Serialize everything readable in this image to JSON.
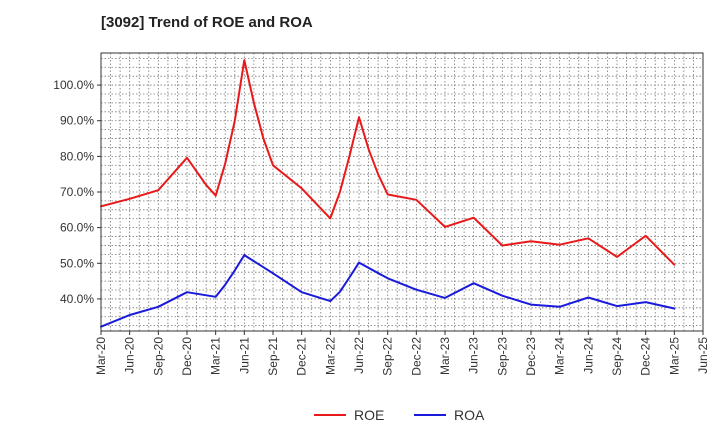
{
  "chart_data": {
    "type": "line",
    "title": "[3092]  Trend of ROE and ROA",
    "xlabel": "",
    "ylabel": "",
    "y_tick_labels": [
      "40.0%",
      "50.0%",
      "60.0%",
      "70.0%",
      "80.0%",
      "90.0%",
      "100.0%"
    ],
    "y_tick_values": [
      40,
      50,
      60,
      70,
      80,
      90,
      100
    ],
    "ylim": [
      31,
      109
    ],
    "x_tick_labels": [
      "Mar-20",
      "Jun-20",
      "Sep-20",
      "Dec-20",
      "Mar-21",
      "Jun-21",
      "Sep-21",
      "Dec-21",
      "Mar-22",
      "Jun-22",
      "Sep-22",
      "Dec-22",
      "Mar-23",
      "Jun-23",
      "Sep-23",
      "Dec-23",
      "Mar-24",
      "Jun-24",
      "Sep-24",
      "Dec-24",
      "Mar-25",
      "Jun-25"
    ],
    "grid": true,
    "legend_position": "bottom-center",
    "series": [
      {
        "name": "ROE",
        "color": "#e8191a",
        "points": [
          [
            "Mar-20",
            66.0
          ],
          [
            "Jun-20",
            68.1
          ],
          [
            "Sep-20",
            70.5
          ],
          [
            "Dec-20",
            79.6
          ],
          [
            "Feb-21",
            72.0
          ],
          [
            "Mar-21",
            69.0
          ],
          [
            "Apr-21",
            78.0
          ],
          [
            "May-21",
            90.0
          ],
          [
            "Jun-21",
            107.0
          ],
          [
            "Jul-21",
            95.0
          ],
          [
            "Aug-21",
            85.0
          ],
          [
            "Sep-21",
            77.5
          ],
          [
            "Dec-21",
            71.0
          ],
          [
            "Mar-22",
            62.6
          ],
          [
            "Apr-22",
            70.0
          ],
          [
            "May-22",
            80.0
          ],
          [
            "Jun-22",
            91.0
          ],
          [
            "Jul-22",
            82.0
          ],
          [
            "Aug-22",
            75.0
          ],
          [
            "Sep-22",
            69.3
          ],
          [
            "Dec-22",
            67.8
          ],
          [
            "Mar-23",
            60.2
          ],
          [
            "Jun-23",
            62.8
          ],
          [
            "Sep-23",
            55.0
          ],
          [
            "Dec-23",
            56.2
          ],
          [
            "Mar-24",
            55.2
          ],
          [
            "Jun-24",
            57.0
          ],
          [
            "Sep-24",
            51.8
          ],
          [
            "Dec-24",
            57.7
          ],
          [
            "Mar-25",
            49.6
          ]
        ]
      },
      {
        "name": "ROA",
        "color": "#1a1adc",
        "points": [
          [
            "Mar-20",
            32.2
          ],
          [
            "Jun-20",
            35.5
          ],
          [
            "Sep-20",
            37.8
          ],
          [
            "Dec-20",
            41.9
          ],
          [
            "Mar-21",
            40.6
          ],
          [
            "Apr-21",
            44.0
          ],
          [
            "May-21",
            48.0
          ],
          [
            "Jun-21",
            52.3
          ],
          [
            "Sep-21",
            47.2
          ],
          [
            "Dec-21",
            41.9
          ],
          [
            "Mar-22",
            39.4
          ],
          [
            "Apr-22",
            42.0
          ],
          [
            "May-22",
            46.0
          ],
          [
            "Jun-22",
            50.2
          ],
          [
            "Sep-22",
            45.8
          ],
          [
            "Dec-22",
            42.6
          ],
          [
            "Mar-23",
            40.3
          ],
          [
            "Jun-23",
            44.4
          ],
          [
            "Sep-23",
            40.9
          ],
          [
            "Dec-23",
            38.4
          ],
          [
            "Mar-24",
            37.8
          ],
          [
            "Jun-24",
            40.4
          ],
          [
            "Sep-24",
            38.0
          ],
          [
            "Dec-24",
            39.1
          ],
          [
            "Mar-25",
            37.3
          ]
        ]
      }
    ]
  }
}
